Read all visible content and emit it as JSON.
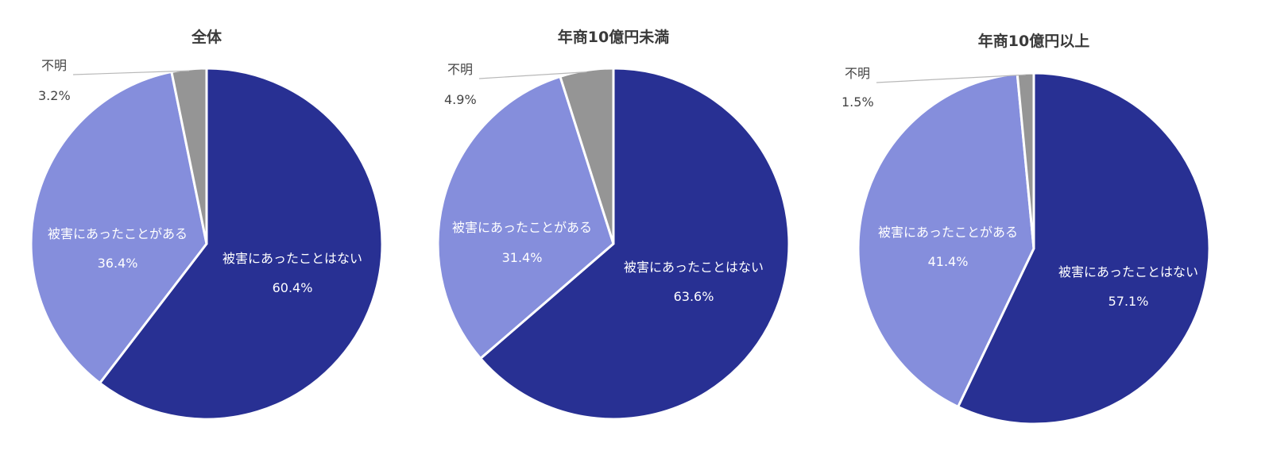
{
  "chart_data": [
    {
      "type": "pie",
      "title": "全体",
      "slices": [
        {
          "label": "被害にあったことはない",
          "value": 60.4,
          "value_text": "60.4%",
          "color": "#283093"
        },
        {
          "label": "被害にあったことがある",
          "value": 36.4,
          "value_text": "36.4%",
          "color": "#858edc"
        },
        {
          "label": "不明",
          "value": 3.2,
          "value_text": "3.2%",
          "color": "#959595"
        }
      ]
    },
    {
      "type": "pie",
      "title": "年商10億円未満",
      "slices": [
        {
          "label": "被害にあったことはない",
          "value": 63.6,
          "value_text": "63.6%",
          "color": "#283093"
        },
        {
          "label": "被害にあったことがある",
          "value": 31.4,
          "value_text": "31.4%",
          "color": "#858edc"
        },
        {
          "label": "不明",
          "value": 4.9,
          "value_text": "4.9%",
          "color": "#959595"
        }
      ]
    },
    {
      "type": "pie",
      "title": "年商10億円以上",
      "slices": [
        {
          "label": "被害にあったことはない",
          "value": 57.1,
          "value_text": "57.1%",
          "color": "#283093"
        },
        {
          "label": "被害にあったことがある",
          "value": 41.4,
          "value_text": "41.4%",
          "color": "#858edc"
        },
        {
          "label": "不明",
          "value": 1.5,
          "value_text": "1.5%",
          "color": "#959595"
        }
      ]
    }
  ]
}
